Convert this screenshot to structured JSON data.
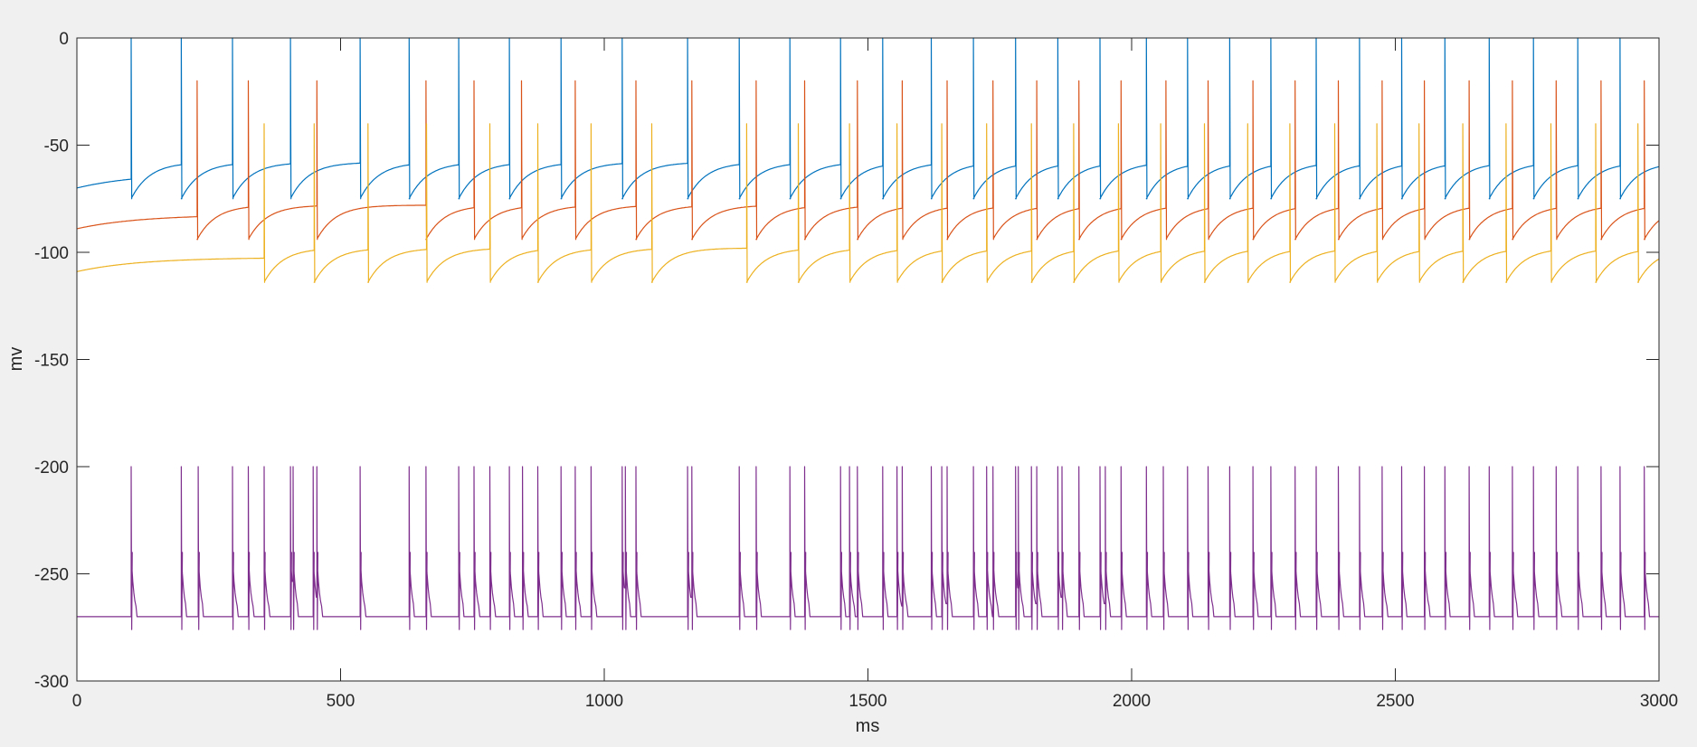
{
  "chart_data": {
    "type": "line",
    "title": "",
    "xlabel": "ms",
    "ylabel": "mv",
    "xlim": [
      0,
      3000
    ],
    "ylim": [
      -300,
      0
    ],
    "xticks": [
      0,
      500,
      1000,
      1500,
      2000,
      2500,
      3000
    ],
    "yticks": [
      -300,
      -250,
      -200,
      -150,
      -100,
      -50,
      0
    ],
    "grid": false,
    "legend": "none",
    "series": [
      {
        "color": "#0072BD",
        "rest": -70,
        "plateau": -58,
        "peak": 0,
        "ahp": -75,
        "spike_times": [
          103,
          198,
          295,
          405,
          537,
          630,
          724,
          820,
          918,
          1034,
          1158,
          1256,
          1352,
          1448,
          1528,
          1620,
          1700,
          1780,
          1860,
          1940,
          2028,
          2106,
          2186,
          2264,
          2350,
          2432,
          2512,
          2594,
          2678,
          2762,
          2846,
          2926
        ]
      },
      {
        "color": "#D95319",
        "rest": -89,
        "plateau": -78,
        "peak": -20,
        "ahp": -94,
        "spike_times": [
          228,
          325,
          455,
          662,
          753,
          843,
          945,
          1060,
          1166,
          1288,
          1380,
          1480,
          1565,
          1650,
          1737,
          1820,
          1900,
          1980,
          2065,
          2145,
          2230,
          2310,
          2392,
          2475,
          2555,
          2640,
          2722,
          2805,
          2890,
          2972
        ]
      },
      {
        "color": "#EDB120",
        "rest": -109,
        "plateau": -98,
        "peak": -40,
        "ahp": -114,
        "spike_times": [
          355,
          450,
          552,
          663,
          783,
          874,
          975,
          1090,
          1270,
          1368,
          1465,
          1555,
          1640,
          1725,
          1810,
          1890,
          1975,
          2055,
          2138,
          2220,
          2300,
          2385,
          2465,
          2545,
          2628,
          2710,
          2795,
          2880,
          2960
        ]
      },
      {
        "color": "#7E2F8E",
        "rest": -270,
        "peak": -200,
        "sub_peak": -240,
        "ahp": -276,
        "spike_times": [
          103,
          198,
          230,
          295,
          325,
          355,
          405,
          410,
          448,
          455,
          537,
          630,
          662,
          724,
          753,
          783,
          820,
          845,
          874,
          918,
          945,
          975,
          1034,
          1040,
          1060,
          1158,
          1166,
          1256,
          1288,
          1352,
          1380,
          1448,
          1465,
          1480,
          1528,
          1555,
          1565,
          1620,
          1640,
          1650,
          1700,
          1725,
          1737,
          1780,
          1785,
          1810,
          1820,
          1860,
          1868,
          1900,
          1940,
          1950,
          1980,
          2028,
          2060,
          2106,
          2145,
          2186,
          2230,
          2264,
          2310,
          2350,
          2392,
          2432,
          2475,
          2512,
          2555,
          2594,
          2640,
          2678,
          2722,
          2762,
          2805,
          2846,
          2890,
          2926,
          2972
        ]
      }
    ]
  }
}
